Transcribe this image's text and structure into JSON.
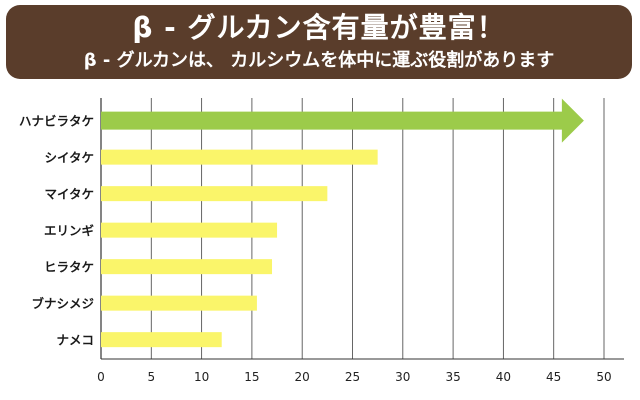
{
  "header": {
    "title": "β - グルカン含有量が豊富！",
    "subtitle": "β - グルカンは、 カルシウムを体中に運ぶ役割があります"
  },
  "colors": {
    "banner_bg": "#5a3d2b",
    "highlight_bar": "#9ccb4a",
    "bar": "#faf56a",
    "grid": "#555555"
  },
  "chart_data": {
    "type": "bar",
    "orientation": "horizontal",
    "categories": [
      "ハナビラタケ",
      "シイタケ",
      "マイタケ",
      "エリンギ",
      "ヒラタケ",
      "ブナシメジ",
      "ナメコ"
    ],
    "values": [
      48,
      27.5,
      22.5,
      17.5,
      17,
      15.5,
      12
    ],
    "highlight": "ハナビラタケ",
    "xlim": [
      0,
      50
    ],
    "xticks": [
      "0",
      "5",
      "10",
      "15",
      "20",
      "25",
      "30",
      "35",
      "40",
      "45",
      "50"
    ],
    "grid": true
  }
}
